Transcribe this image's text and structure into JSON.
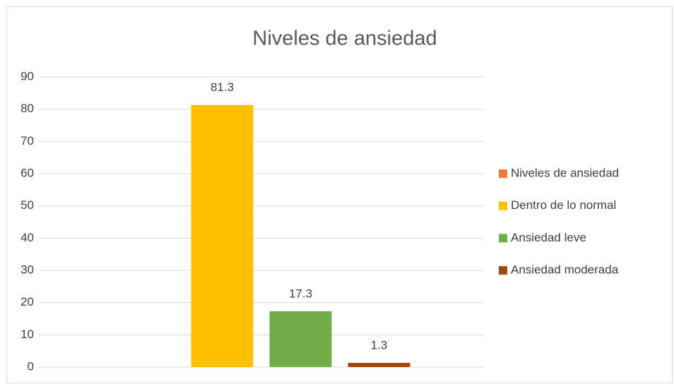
{
  "chart_data": {
    "type": "bar",
    "title": "Niveles de ansiedad",
    "categories": [
      null
    ],
    "series": [
      {
        "name": "Niveles de ansiedad",
        "color": "#ed7d31",
        "values": [
          null
        ]
      },
      {
        "name": "Dentro de lo normal",
        "color": "#ffc000",
        "values": [
          81.3
        ]
      },
      {
        "name": "Ansiedad leve",
        "color": "#70ad47",
        "values": [
          17.3
        ]
      },
      {
        "name": "Ansiedad moderada",
        "color": "#9e480e",
        "values": [
          1.3
        ]
      }
    ],
    "ylim": [
      0,
      90
    ],
    "yticks": [
      0,
      10,
      20,
      30,
      40,
      50,
      60,
      70,
      80,
      90
    ],
    "grid": true,
    "legend": "right"
  }
}
